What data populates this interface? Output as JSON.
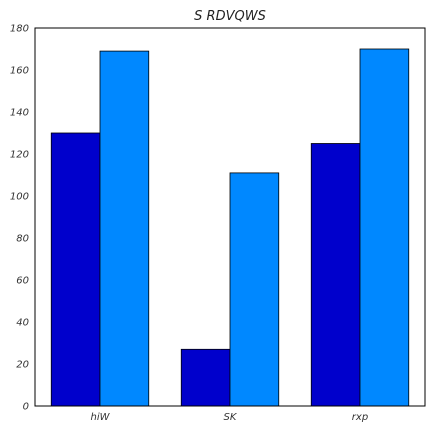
{
  "chart_data": {
    "type": "bar",
    "title": "S RDVQWS",
    "xlabel": "",
    "ylabel": "",
    "categories": [
      "hiW",
      "SK",
      "rxp"
    ],
    "series": [
      {
        "values": [
          130,
          27,
          125
        ],
        "color": "#0000cc"
      },
      {
        "values": [
          169,
          111,
          170
        ],
        "color": "#0088ff"
      }
    ],
    "ylim": [
      0,
      180
    ],
    "yticks": [
      "0",
      "20",
      "40",
      "60",
      "80",
      "100",
      "120",
      "140",
      "160",
      "180"
    ],
    "grid": false,
    "legend": "none"
  }
}
